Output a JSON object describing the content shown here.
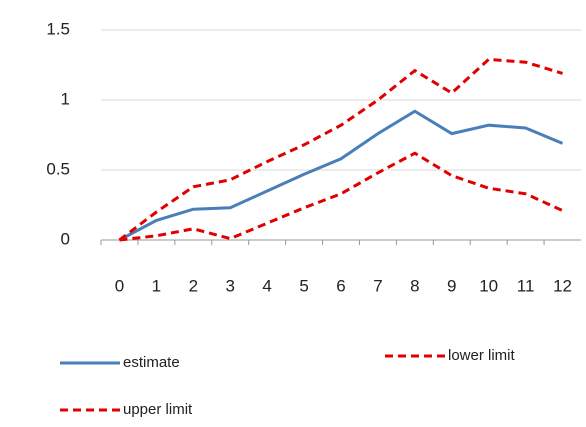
{
  "chart_data": {
    "type": "line",
    "categories": [
      "0",
      "1",
      "2",
      "3",
      "4",
      "5",
      "6",
      "7",
      "8",
      "9",
      "10",
      "11",
      "12"
    ],
    "series": [
      {
        "name": "estimate",
        "color": "#4a7ebb",
        "line_style": "solid",
        "values": [
          0,
          0.14,
          0.22,
          0.23,
          0.35,
          0.47,
          0.58,
          0.76,
          0.92,
          0.76,
          0.82,
          0.8,
          0.69
        ]
      },
      {
        "name": "lower limit",
        "color": "#e00000",
        "line_style": "dashed",
        "values": [
          0,
          0.03,
          0.08,
          0.01,
          0.12,
          0.23,
          0.33,
          0.48,
          0.62,
          0.46,
          0.37,
          0.33,
          0.21
        ]
      },
      {
        "name": "upper limit",
        "color": "#e00000",
        "line_style": "dashed",
        "values": [
          0,
          0.2,
          0.38,
          0.43,
          0.56,
          0.68,
          0.82,
          1.0,
          1.21,
          1.05,
          1.29,
          1.27,
          1.19
        ]
      }
    ],
    "ylim": [
      0,
      1.5
    ],
    "yticks": [
      0,
      0.5,
      1,
      1.5
    ],
    "grid": true,
    "legend": "bottom"
  }
}
